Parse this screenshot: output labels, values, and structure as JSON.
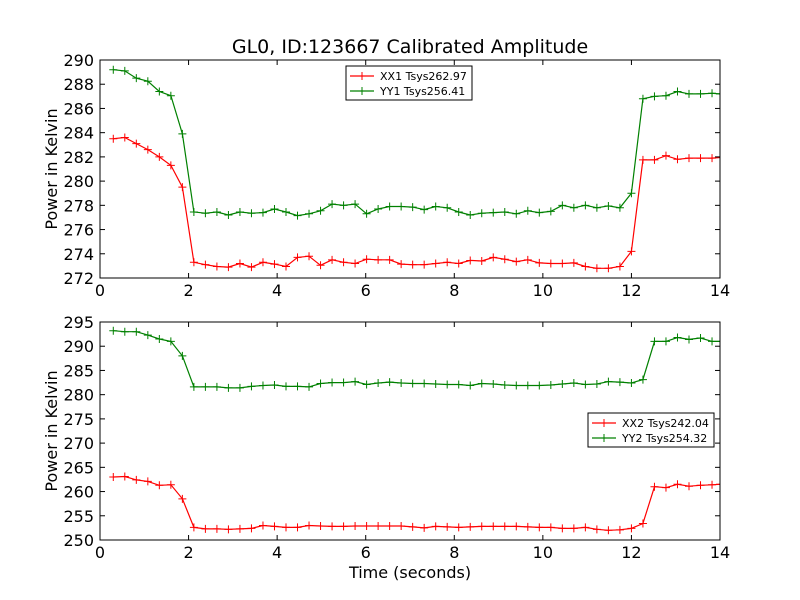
{
  "figure": {
    "title": "GL0, ID:123667 Calibrated Amplitude",
    "xlabel": "Time (seconds)"
  },
  "chart_data": [
    {
      "type": "line",
      "ylabel": "Power in Kelvin",
      "xlim": [
        0,
        14
      ],
      "ylim": [
        272,
        290
      ],
      "xticks": [
        0,
        2,
        4,
        6,
        8,
        10,
        12,
        14
      ],
      "yticks": [
        272,
        274,
        276,
        278,
        280,
        282,
        284,
        286,
        288,
        290
      ],
      "grid": false,
      "legend_position": "top-center",
      "x": [
        0.3,
        0.56,
        0.82,
        1.08,
        1.34,
        1.6,
        1.86,
        2.12,
        2.38,
        2.64,
        2.9,
        3.16,
        3.42,
        3.68,
        3.94,
        4.2,
        4.46,
        4.72,
        4.98,
        5.24,
        5.5,
        5.76,
        6.02,
        6.28,
        6.54,
        6.8,
        7.06,
        7.32,
        7.58,
        7.84,
        8.1,
        8.36,
        8.62,
        8.88,
        9.14,
        9.4,
        9.66,
        9.92,
        10.18,
        10.44,
        10.7,
        10.96,
        11.22,
        11.48,
        11.74,
        12.0,
        12.26,
        12.52,
        12.78,
        13.04,
        13.3,
        13.56,
        13.82,
        14.0
      ],
      "series": [
        {
          "name": "XX1 Tsys262.97",
          "color": "#ff0000",
          "values": [
            283.5,
            283.6,
            283.1,
            282.6,
            282.0,
            281.3,
            279.5,
            273.3,
            273.1,
            272.95,
            272.9,
            273.2,
            272.9,
            273.3,
            273.15,
            272.95,
            273.7,
            273.8,
            273.05,
            273.5,
            273.3,
            273.2,
            273.55,
            273.5,
            273.5,
            273.15,
            273.1,
            273.1,
            273.2,
            273.3,
            273.2,
            273.45,
            273.4,
            273.7,
            273.55,
            273.35,
            273.5,
            273.25,
            273.2,
            273.2,
            273.25,
            272.95,
            272.8,
            272.8,
            272.95,
            274.2,
            281.75,
            281.75,
            282.1,
            281.8,
            281.9,
            281.9,
            281.9,
            281.95
          ]
        },
        {
          "name": "YY1 Tsys256.41",
          "color": "#008000",
          "values": [
            289.2,
            289.1,
            288.5,
            288.25,
            287.4,
            287.05,
            283.9,
            277.45,
            277.35,
            277.45,
            277.2,
            277.45,
            277.35,
            277.4,
            277.7,
            277.45,
            277.15,
            277.3,
            277.55,
            278.1,
            278.0,
            278.1,
            277.3,
            277.7,
            277.9,
            277.9,
            277.85,
            277.65,
            277.9,
            277.8,
            277.45,
            277.2,
            277.35,
            277.4,
            277.45,
            277.3,
            277.55,
            277.4,
            277.5,
            278.0,
            277.8,
            278.0,
            277.8,
            277.95,
            277.8,
            279.0,
            286.8,
            287.0,
            287.05,
            287.4,
            287.2,
            287.2,
            287.25,
            287.2
          ]
        }
      ]
    },
    {
      "type": "line",
      "ylabel": "Power in Kelvin",
      "xlabel": "Time (seconds)",
      "xlim": [
        0,
        14
      ],
      "ylim": [
        250,
        295
      ],
      "xticks": [
        0,
        2,
        4,
        6,
        8,
        10,
        12,
        14
      ],
      "yticks": [
        250,
        255,
        260,
        265,
        270,
        275,
        280,
        285,
        290,
        295
      ],
      "grid": false,
      "legend_position": "center-right",
      "x": [
        0.3,
        0.56,
        0.82,
        1.08,
        1.34,
        1.6,
        1.86,
        2.12,
        2.38,
        2.64,
        2.9,
        3.16,
        3.42,
        3.68,
        3.94,
        4.2,
        4.46,
        4.72,
        4.98,
        5.24,
        5.5,
        5.76,
        6.02,
        6.28,
        6.54,
        6.8,
        7.06,
        7.32,
        7.58,
        7.84,
        8.1,
        8.36,
        8.62,
        8.88,
        9.14,
        9.4,
        9.66,
        9.92,
        10.18,
        10.44,
        10.7,
        10.96,
        11.22,
        11.48,
        11.74,
        12.0,
        12.26,
        12.52,
        12.78,
        13.04,
        13.3,
        13.56,
        13.82,
        14.0
      ],
      "series": [
        {
          "name": "XX2 Tsys242.04",
          "color": "#ff0000",
          "values": [
            263.0,
            263.1,
            262.4,
            262.1,
            261.3,
            261.4,
            258.5,
            252.6,
            252.3,
            252.3,
            252.2,
            252.3,
            252.4,
            253.0,
            252.8,
            252.6,
            252.6,
            253.0,
            252.9,
            252.8,
            252.8,
            252.9,
            252.9,
            252.9,
            252.9,
            252.9,
            252.7,
            252.5,
            252.8,
            252.7,
            252.6,
            252.7,
            252.8,
            252.8,
            252.8,
            252.8,
            252.7,
            252.6,
            252.6,
            252.4,
            252.4,
            252.6,
            252.2,
            252.0,
            252.1,
            252.4,
            253.4,
            261.0,
            260.8,
            261.5,
            261.1,
            261.3,
            261.4,
            261.5
          ]
        },
        {
          "name": "YY2 Tsys254.32",
          "color": "#008000",
          "values": [
            293.2,
            293.0,
            293.0,
            292.3,
            291.5,
            291.0,
            288.0,
            281.6,
            281.6,
            281.6,
            281.4,
            281.4,
            281.7,
            281.9,
            282.0,
            281.7,
            281.7,
            281.6,
            282.3,
            282.5,
            282.5,
            282.7,
            282.1,
            282.4,
            282.6,
            282.4,
            282.3,
            282.3,
            282.2,
            282.1,
            282.1,
            281.9,
            282.3,
            282.2,
            282.0,
            281.9,
            281.9,
            281.9,
            282.0,
            282.2,
            282.4,
            282.1,
            282.2,
            282.7,
            282.6,
            282.4,
            283.1,
            291.0,
            291.0,
            291.8,
            291.4,
            291.7,
            291.0,
            291.0
          ]
        }
      ]
    }
  ]
}
